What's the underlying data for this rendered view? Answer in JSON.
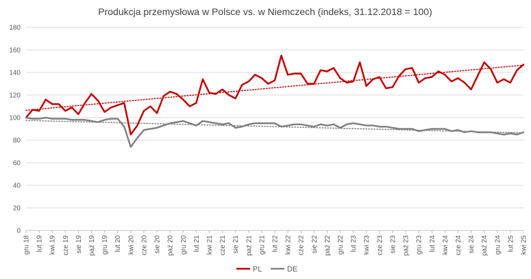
{
  "chart_data": {
    "type": "line",
    "title": "Produkcja przemysłowa w Polsce vs. w Niemczech (indeks, 31.12.2018 = 100)",
    "xlabel": "",
    "ylabel": "",
    "ylim": [
      0,
      180
    ],
    "yticks": [
      0,
      20,
      40,
      60,
      80,
      100,
      120,
      140,
      160,
      180
    ],
    "grid": true,
    "legend": "bottom-center",
    "categories": [
      "gru 18",
      "sty 19",
      "lut 19",
      "mar 19",
      "kwi 19",
      "maj 19",
      "cze 19",
      "lip 19",
      "sie 19",
      "wrz 19",
      "paź 19",
      "lis 19",
      "gru 19",
      "sty 20",
      "lut 20",
      "mar 20",
      "kwi 20",
      "maj 20",
      "cze 20",
      "lip 20",
      "sie 20",
      "wrz 20",
      "paź 20",
      "lis 20",
      "gru 20",
      "sty 21",
      "lut 21",
      "mar 21",
      "kwi 21",
      "maj 21",
      "cze 21",
      "lip 21",
      "sie 21",
      "wrz 21",
      "paź 21",
      "lis 21",
      "gru 21",
      "sty 22",
      "lut 22",
      "mar 22",
      "kwi 22",
      "maj 22",
      "cze 22",
      "lip 22",
      "sie 22",
      "wrz 22",
      "paź 22",
      "lis 22",
      "gru 22",
      "sty 23",
      "lut 23",
      "mar 23",
      "kwi 23",
      "maj 23",
      "cze 23",
      "lip 23",
      "sie 23",
      "wrz 23",
      "paź 23",
      "lis 23",
      "gru 23",
      "sty 24",
      "lut 24",
      "mar 24",
      "kwi 24",
      "maj 24",
      "cze 24",
      "lip 24",
      "sie 24",
      "wrz 24",
      "paź 24",
      "lis 24",
      "gru 24",
      "sty 25",
      "lut 25",
      "mar 25",
      "kwi 25"
    ],
    "tick_labels": [
      "gru 18",
      "lut 19",
      "kwi 19",
      "cze 19",
      "sie 19",
      "paź 19",
      "gru 19",
      "lut 20",
      "kwi 20",
      "cze 20",
      "sie 20",
      "paź 20",
      "gru 20",
      "lut 21",
      "kwi 21",
      "cze 21",
      "sie 21",
      "paź 21",
      "gru 21",
      "lut 22",
      "kwi 22",
      "cze 22",
      "sie 22",
      "paź 22",
      "gru 22",
      "lut 23",
      "kwi 23",
      "cze 23",
      "sie 23",
      "paź 23",
      "gru 23",
      "lut 24",
      "kwi 24",
      "cze 24",
      "sie 24",
      "paź 24",
      "gru 24",
      "lut 25",
      "kwi 25"
    ],
    "series": [
      {
        "name": "PL",
        "color": "#c00000",
        "values": [
          100,
          107,
          106,
          116,
          112,
          112,
          106,
          109,
          103,
          113,
          121,
          115,
          105,
          109,
          111,
          113,
          85,
          93,
          106,
          110,
          104,
          119,
          123,
          121,
          116,
          110,
          113,
          134,
          122,
          121,
          125,
          120,
          117,
          129,
          132,
          138,
          135,
          130,
          133,
          155,
          138,
          139,
          139,
          130,
          130,
          142,
          141,
          144,
          135,
          131,
          132,
          149,
          128,
          134,
          136,
          126,
          127,
          137,
          143,
          144,
          131,
          135,
          136,
          141,
          138,
          132,
          135,
          131,
          125,
          137,
          149,
          143,
          131,
          134,
          131,
          142,
          147
        ],
        "trend": [
          106.5,
          146.5
        ]
      },
      {
        "name": "DE",
        "color": "#808080",
        "values": [
          100,
          99,
          99,
          100,
          99,
          99,
          99,
          98,
          98,
          98,
          97,
          96,
          98,
          99,
          99,
          92,
          74,
          82,
          89,
          90,
          91,
          93,
          95,
          96,
          97,
          95,
          93,
          97,
          96,
          95,
          94,
          95,
          91,
          92,
          94,
          95,
          95,
          95,
          95,
          92,
          93,
          94,
          94,
          93,
          92,
          94,
          93,
          94,
          91,
          94,
          95,
          94,
          93,
          93,
          92,
          92,
          91,
          90,
          90,
          90,
          88,
          89,
          90,
          90,
          90,
          88,
          89,
          87,
          88,
          87,
          87,
          87,
          86,
          85,
          86,
          85,
          87
        ],
        "trend": [
          97.5,
          86.5
        ]
      }
    ]
  }
}
